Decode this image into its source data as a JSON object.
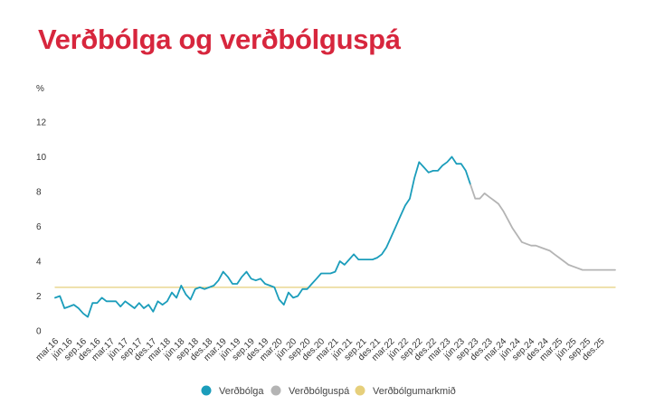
{
  "title": "Verðbólga og verðbólguspá",
  "chart_data": {
    "type": "line",
    "title": "Verðbólga og verðbólguspá",
    "ylabel": "%",
    "ylim": [
      0,
      12
    ],
    "yticks": [
      0,
      2,
      4,
      6,
      8,
      10,
      12
    ],
    "grid": false,
    "legend_position": "bottom-center",
    "x_tick_labels": [
      "mar.16",
      "jún.16",
      "sep.16",
      "des.16",
      "mar.17",
      "jún.17",
      "sep.17",
      "des.17",
      "mar.18",
      "jún.18",
      "sep.18",
      "des.18",
      "mar.19",
      "jún.19",
      "sep.19",
      "des.19",
      "mar.20",
      "jún.20",
      "sep.20",
      "des.20",
      "mar.21",
      "jún.21",
      "sep.21",
      "des.21",
      "mar.22",
      "jún.22",
      "sep.22",
      "des.22",
      "mar.23",
      "jún.23",
      "sep.23",
      "des.23",
      "mar.24",
      "jún.24",
      "sep.24",
      "des.24",
      "mar.25",
      "jún.25",
      "sep.25",
      "des.25"
    ],
    "series": [
      {
        "name": "Verðbólga",
        "color": "#1b9dbb",
        "start_index": 0,
        "values": [
          1.9,
          2.0,
          1.3,
          1.4,
          1.5,
          1.3,
          1.0,
          0.8,
          1.6,
          1.6,
          1.9,
          1.7,
          1.7,
          1.7,
          1.4,
          1.7,
          1.5,
          1.3,
          1.6,
          1.3,
          1.5,
          1.1,
          1.7,
          1.5,
          1.7,
          2.2,
          1.9,
          2.6,
          2.1,
          1.8,
          2.4,
          2.5,
          2.4,
          2.5,
          2.6,
          2.9,
          3.4,
          3.1,
          2.7,
          2.7,
          3.1,
          3.4,
          3.0,
          2.9,
          3.0,
          2.7,
          2.6,
          2.5,
          1.8,
          1.5,
          2.2,
          1.9,
          2.0,
          2.4,
          2.4,
          2.7,
          3.0,
          3.3,
          3.3,
          3.3,
          3.4,
          4.0,
          3.8,
          4.1,
          4.4,
          4.1,
          4.1,
          4.1,
          4.1,
          4.2,
          4.4,
          4.8,
          5.4,
          6.0,
          6.6,
          7.2,
          7.6,
          8.8,
          9.7,
          9.4,
          9.1,
          9.2,
          9.2,
          9.5,
          9.7,
          10.0,
          9.6,
          9.6,
          9.2,
          8.4
        ]
      },
      {
        "name": "Verðbólguspá",
        "color": "#b4b4b4",
        "start_index": 89,
        "values": [
          8.4,
          7.6,
          7.6,
          7.9,
          7.7,
          7.5,
          7.3,
          6.9,
          6.4,
          5.9,
          5.5,
          5.1,
          5.0,
          4.9,
          4.9,
          4.8,
          4.7,
          4.6,
          4.4,
          4.2,
          4.0,
          3.8,
          3.7,
          3.6,
          3.5,
          3.5,
          3.5,
          3.5,
          3.5,
          3.5,
          3.5,
          3.5
        ]
      },
      {
        "name": "Verðbólgumarkmið",
        "color": "#e6cf7b",
        "start_index": 0,
        "constant": 2.5
      }
    ]
  }
}
